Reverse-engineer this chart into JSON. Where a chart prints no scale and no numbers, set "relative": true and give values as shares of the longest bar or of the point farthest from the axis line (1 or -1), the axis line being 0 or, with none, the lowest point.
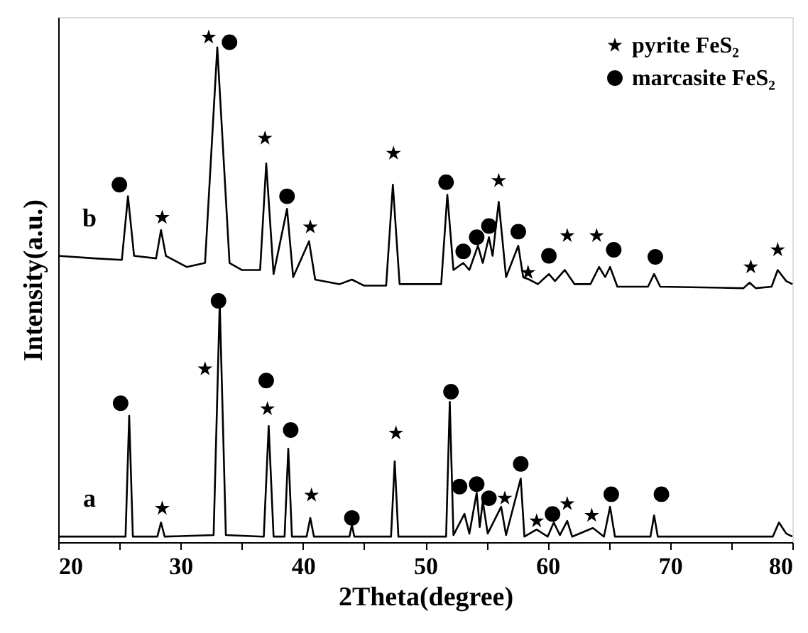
{
  "chart_data": {
    "type": "line",
    "xlabel": "2Theta(degree)",
    "ylabel": "Intensity(a.u.)",
    "relative": true,
    "tick_labels": "x",
    "legend": "top right",
    "xlim": [
      20,
      80
    ],
    "xticks": [
      20,
      {
        "value": 25,
        "label": null
      },
      30,
      {
        "value": 35,
        "label": null
      },
      40,
      {
        "value": 45,
        "label": null
      },
      50,
      {
        "value": 55,
        "label": null
      },
      60,
      {
        "value": 65,
        "label": null
      },
      70,
      {
        "value": 75,
        "label": null
      },
      80
    ],
    "series": [
      {
        "name": "b",
        "marker": "none",
        "color": "#000000",
        "x": [
          20,
          23,
          25.2,
          25.7,
          26.2,
          28.0,
          28.4,
          28.8,
          30.5,
          32.0,
          33.0,
          34.0,
          35.0,
          36.5,
          37.0,
          37.6,
          38.7,
          39.2,
          40.5,
          41.0,
          43,
          44,
          45,
          46.8,
          47.35,
          47.9,
          51.3,
          51.8,
          52.3,
          53.1,
          53.6,
          54.3,
          54.7,
          55.2,
          55.5,
          56.0,
          56.6,
          57.6,
          58.0,
          58.5,
          59.2,
          60.1,
          60.6,
          61.4,
          62.2,
          63.5,
          64.2,
          64.7,
          65.1,
          65.7,
          68.2,
          68.7,
          69.2,
          76.0,
          76.5,
          77.0,
          78.3,
          78.8,
          79.5,
          80
        ],
        "values": [
          0.567,
          0.562,
          0.559,
          0.685,
          0.567,
          0.562,
          0.618,
          0.567,
          0.545,
          0.553,
          0.98,
          0.553,
          0.539,
          0.539,
          0.75,
          0.531,
          0.66,
          0.525,
          0.596,
          0.52,
          0.511,
          0.52,
          0.508,
          0.508,
          0.708,
          0.511,
          0.511,
          0.688,
          0.539,
          0.553,
          0.539,
          0.587,
          0.553,
          0.604,
          0.567,
          0.674,
          0.525,
          0.587,
          0.525,
          0.52,
          0.511,
          0.531,
          0.517,
          0.539,
          0.511,
          0.511,
          0.545,
          0.525,
          0.545,
          0.506,
          0.506,
          0.531,
          0.506,
          0.503,
          0.514,
          0.503,
          0.506,
          0.539,
          0.517,
          0.511
        ]
      },
      {
        "name": "a",
        "marker": "none",
        "color": "#000000",
        "x": [
          20,
          25.5,
          25.8,
          26.1,
          28.1,
          28.4,
          28.7,
          32.7,
          33.2,
          33.7,
          36.8,
          37.2,
          37.6,
          38.5,
          38.8,
          39.1,
          40.3,
          40.6,
          40.9,
          43.8,
          44.0,
          44.2,
          47.2,
          47.5,
          47.8,
          51.7,
          52.0,
          52.3,
          53.2,
          53.6,
          54.2,
          54.45,
          54.7,
          55.1,
          56.2,
          56.6,
          57.8,
          58.1,
          59.1,
          60.0,
          60.5,
          61.0,
          61.6,
          62.0,
          63.7,
          64.6,
          65.1,
          65.5,
          68.4,
          68.7,
          69.0,
          78.4,
          78.9,
          79.5,
          80
        ],
        "values": [
          0.011,
          0.011,
          0.25,
          0.011,
          0.011,
          0.039,
          0.011,
          0.014,
          0.475,
          0.014,
          0.011,
          0.23,
          0.011,
          0.011,
          0.185,
          0.011,
          0.011,
          0.048,
          0.011,
          0.011,
          0.034,
          0.011,
          0.011,
          0.16,
          0.011,
          0.011,
          0.278,
          0.014,
          0.056,
          0.017,
          0.098,
          0.03,
          0.081,
          0.017,
          0.07,
          0.014,
          0.126,
          0.011,
          0.025,
          0.011,
          0.039,
          0.014,
          0.042,
          0.011,
          0.028,
          0.011,
          0.07,
          0.011,
          0.011,
          0.053,
          0.011,
          0.011,
          0.039,
          0.017,
          0.011
        ]
      },
      {
        "name": "pyrite FeS₂",
        "type": "scatter",
        "marker": "star",
        "color": "#000000",
        "x": [
          28.5,
          32.3,
          36.9,
          40.6,
          47.4,
          56.0,
          58.4,
          61.6,
          64.0,
          76.6,
          78.8,
          28.5,
          32.0,
          37.1,
          40.7,
          47.6,
          56.5,
          59.1,
          61.6,
          63.6
        ],
        "values": [
          0.643,
          1.0,
          0.8,
          0.624,
          0.77,
          0.716,
          0.534,
          0.607,
          0.607,
          0.545,
          0.579,
          0.067,
          0.343,
          0.264,
          0.093,
          0.216,
          0.087,
          0.042,
          0.076,
          0.053
        ]
      },
      {
        "name": "marcasite FeS₂",
        "type": "scatter",
        "marker": "circle",
        "color": "#000000",
        "x": [
          25.0,
          34.0,
          38.7,
          51.7,
          53.1,
          54.2,
          55.2,
          57.6,
          60.1,
          65.4,
          68.8,
          25.1,
          33.1,
          37.0,
          39.0,
          44.0,
          52.1,
          52.8,
          54.2,
          55.2,
          57.8,
          60.4,
          65.2,
          69.3
        ],
        "values": [
          0.708,
          0.99,
          0.685,
          0.713,
          0.576,
          0.604,
          0.626,
          0.615,
          0.567,
          0.579,
          0.565,
          0.275,
          0.478,
          0.32,
          0.222,
          0.048,
          0.298,
          0.11,
          0.115,
          0.087,
          0.155,
          0.056,
          0.095,
          0.095
        ]
      }
    ]
  }
}
